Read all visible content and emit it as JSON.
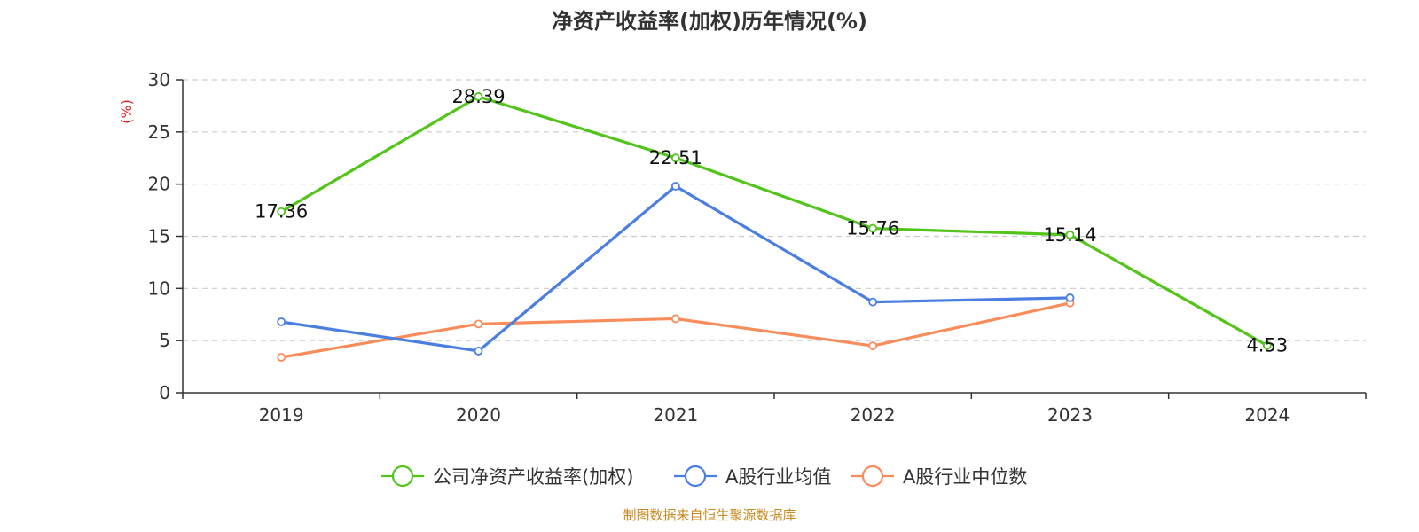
{
  "chart_data": {
    "type": "line",
    "title": "净资产收益率(加权)历年情况(%)",
    "ylabel": "(%)",
    "categories": [
      "2019",
      "2020",
      "2021",
      "2022",
      "2023",
      "2024"
    ],
    "ylim": [
      0,
      30
    ],
    "yticks": [
      0,
      5,
      10,
      15,
      20,
      25,
      30
    ],
    "grid": true,
    "legend_position": "bottom",
    "series": [
      {
        "name": "公司净资产收益率(加权)",
        "color": "#52c41a",
        "values": [
          17.36,
          28.39,
          22.51,
          15.76,
          15.14,
          4.53
        ],
        "labels": [
          "17.36",
          "28.39",
          "22.51",
          "15.76",
          "15.14",
          "4.53"
        ]
      },
      {
        "name": "A股行业均值",
        "color": "#4a7ee0",
        "values": [
          6.8,
          4.0,
          19.8,
          8.7,
          9.1,
          null
        ]
      },
      {
        "name": "A股行业中位数",
        "color": "#f98c5b",
        "values": [
          3.4,
          6.6,
          7.1,
          4.5,
          8.6,
          null
        ]
      }
    ],
    "source": "制图数据来自恒生聚源数据库",
    "source_color": "#c98a1e",
    "ylabel_color": "#e02020"
  }
}
